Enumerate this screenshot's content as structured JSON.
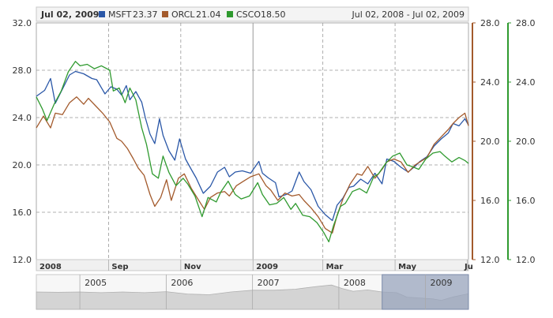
{
  "legend": {
    "date": "Jul 02, 2009:",
    "items": [
      {
        "name": "MSFT",
        "value": "23.37",
        "color": "#2a57a7"
      },
      {
        "name": "ORCL",
        "value": "21.04",
        "color": "#a35a2c"
      },
      {
        "name": "CSCO",
        "value": "18.50",
        "color": "#2f9a2f"
      }
    ],
    "range_text": "Jul 02, 2008 - Jul 02, 2009"
  },
  "navigator": {
    "years": [
      "2005",
      "2006",
      "2007",
      "2008",
      "2009"
    ]
  },
  "chart_data": {
    "type": "line",
    "title": "",
    "x_ticks": [
      "2008",
      "Sep",
      "Nov",
      "2009",
      "Mar",
      "May",
      "Ju"
    ],
    "y_left": {
      "ticks": [
        "32.0",
        "28.0",
        "24.0",
        "20.0",
        "16.0",
        "12.0"
      ],
      "range": [
        12,
        32
      ]
    },
    "y_right_orcl": {
      "ticks": [
        "28.0",
        "24.0",
        "20.0",
        "16.0",
        "12.0"
      ],
      "range": [
        12,
        28
      ],
      "color": "#a35a2c"
    },
    "y_right_csco": {
      "ticks": [
        "28.0",
        "24.0",
        "20.0",
        "16.0",
        "12.0"
      ],
      "range": [
        12,
        28
      ],
      "color": "#2f9a2f"
    },
    "x_range": [
      "2008-07-02",
      "2009-07-02"
    ],
    "series": [
      {
        "name": "MSFT",
        "color": "#2a57a7",
        "axis": "left",
        "points": [
          [
            "2008-07-02",
            25.8
          ],
          [
            "2008-07-09",
            26.3
          ],
          [
            "2008-07-14",
            27.3
          ],
          [
            "2008-07-18",
            25.2
          ],
          [
            "2008-07-24",
            26.4
          ],
          [
            "2008-07-30",
            27.6
          ],
          [
            "2008-08-04",
            27.9
          ],
          [
            "2008-08-11",
            27.7
          ],
          [
            "2008-08-18",
            27.3
          ],
          [
            "2008-08-22",
            27.2
          ],
          [
            "2008-08-29",
            26.0
          ],
          [
            "2008-09-03",
            26.6
          ],
          [
            "2008-09-08",
            26.4
          ],
          [
            "2008-09-12",
            25.9
          ],
          [
            "2008-09-16",
            26.7
          ],
          [
            "2008-09-19",
            25.5
          ],
          [
            "2008-09-24",
            26.2
          ],
          [
            "2008-09-29",
            25.3
          ],
          [
            "2008-10-02",
            24.0
          ],
          [
            "2008-10-06",
            22.6
          ],
          [
            "2008-10-10",
            21.8
          ],
          [
            "2008-10-14",
            23.9
          ],
          [
            "2008-10-17",
            22.5
          ],
          [
            "2008-10-22",
            21.2
          ],
          [
            "2008-10-27",
            20.4
          ],
          [
            "2008-10-31",
            22.2
          ],
          [
            "2008-11-05",
            20.5
          ],
          [
            "2008-11-10",
            19.6
          ],
          [
            "2008-11-14",
            18.9
          ],
          [
            "2008-11-20",
            17.6
          ],
          [
            "2008-11-26",
            18.2
          ],
          [
            "2008-12-02",
            19.4
          ],
          [
            "2008-12-08",
            19.8
          ],
          [
            "2008-12-12",
            19.0
          ],
          [
            "2008-12-17",
            19.4
          ],
          [
            "2008-12-23",
            19.5
          ],
          [
            "2008-12-30",
            19.3
          ],
          [
            "2009-01-06",
            20.3
          ],
          [
            "2009-01-09",
            19.3
          ],
          [
            "2009-01-14",
            18.9
          ],
          [
            "2009-01-20",
            18.5
          ],
          [
            "2009-01-23",
            17.3
          ],
          [
            "2009-01-29",
            17.5
          ],
          [
            "2009-02-03",
            17.8
          ],
          [
            "2009-02-09",
            19.4
          ],
          [
            "2009-02-13",
            18.6
          ],
          [
            "2009-02-19",
            17.9
          ],
          [
            "2009-02-25",
            16.5
          ],
          [
            "2009-03-03",
            15.8
          ],
          [
            "2009-03-09",
            15.3
          ],
          [
            "2009-03-13",
            16.6
          ],
          [
            "2009-03-18",
            17.2
          ],
          [
            "2009-03-23",
            18.1
          ],
          [
            "2009-03-27",
            18.2
          ],
          [
            "2009-04-02",
            18.8
          ],
          [
            "2009-04-08",
            18.4
          ],
          [
            "2009-04-14",
            19.3
          ],
          [
            "2009-04-20",
            18.4
          ],
          [
            "2009-04-24",
            20.5
          ],
          [
            "2009-04-30",
            20.3
          ],
          [
            "2009-05-06",
            19.8
          ],
          [
            "2009-05-12",
            19.4
          ],
          [
            "2009-05-18",
            19.9
          ],
          [
            "2009-05-22",
            20.3
          ],
          [
            "2009-05-28",
            20.7
          ],
          [
            "2009-06-03",
            21.6
          ],
          [
            "2009-06-09",
            22.2
          ],
          [
            "2009-06-15",
            22.7
          ],
          [
            "2009-06-19",
            23.5
          ],
          [
            "2009-06-24",
            23.3
          ],
          [
            "2009-06-29",
            23.9
          ],
          [
            "2009-07-02",
            23.37
          ]
        ]
      },
      {
        "name": "ORCL",
        "color": "#a35a2c",
        "axis": "right_orcl",
        "points": [
          [
            "2008-07-02",
            20.9
          ],
          [
            "2008-07-08",
            21.7
          ],
          [
            "2008-07-14",
            20.9
          ],
          [
            "2008-07-18",
            21.9
          ],
          [
            "2008-07-24",
            21.8
          ],
          [
            "2008-07-30",
            22.6
          ],
          [
            "2008-08-05",
            23.0
          ],
          [
            "2008-08-11",
            22.5
          ],
          [
            "2008-08-15",
            22.9
          ],
          [
            "2008-08-21",
            22.4
          ],
          [
            "2008-08-27",
            21.9
          ],
          [
            "2008-09-02",
            21.3
          ],
          [
            "2008-09-08",
            20.2
          ],
          [
            "2008-09-12",
            20.0
          ],
          [
            "2008-09-17",
            19.5
          ],
          [
            "2008-09-22",
            18.8
          ],
          [
            "2008-09-26",
            18.2
          ],
          [
            "2008-10-01",
            17.7
          ],
          [
            "2008-10-06",
            16.4
          ],
          [
            "2008-10-10",
            15.6
          ],
          [
            "2008-10-15",
            16.2
          ],
          [
            "2008-10-20",
            17.4
          ],
          [
            "2008-10-24",
            16.0
          ],
          [
            "2008-10-30",
            17.5
          ],
          [
            "2008-11-04",
            17.8
          ],
          [
            "2008-11-10",
            16.8
          ],
          [
            "2008-11-17",
            15.9
          ],
          [
            "2008-11-21",
            15.4
          ],
          [
            "2008-11-26",
            16.2
          ],
          [
            "2008-12-02",
            16.5
          ],
          [
            "2008-12-08",
            16.6
          ],
          [
            "2008-12-12",
            16.3
          ],
          [
            "2008-12-18",
            17.0
          ],
          [
            "2008-12-24",
            17.3
          ],
          [
            "2008-12-30",
            17.6
          ],
          [
            "2009-01-06",
            17.8
          ],
          [
            "2009-01-12",
            17.0
          ],
          [
            "2009-01-16",
            16.7
          ],
          [
            "2009-01-22",
            16.0
          ],
          [
            "2009-01-28",
            16.5
          ],
          [
            "2009-02-03",
            16.3
          ],
          [
            "2009-02-09",
            16.4
          ],
          [
            "2009-02-13",
            16.0
          ],
          [
            "2009-02-19",
            15.5
          ],
          [
            "2009-02-25",
            14.9
          ],
          [
            "2009-03-03",
            14.1
          ],
          [
            "2009-03-09",
            13.8
          ],
          [
            "2009-03-13",
            15.0
          ],
          [
            "2009-03-18",
            16.1
          ],
          [
            "2009-03-24",
            17.1
          ],
          [
            "2009-03-30",
            17.8
          ],
          [
            "2009-04-03",
            17.7
          ],
          [
            "2009-04-08",
            18.3
          ],
          [
            "2009-04-14",
            17.5
          ],
          [
            "2009-04-20",
            18.1
          ],
          [
            "2009-04-24",
            18.6
          ],
          [
            "2009-04-30",
            18.8
          ],
          [
            "2009-05-06",
            18.6
          ],
          [
            "2009-05-12",
            17.9
          ],
          [
            "2009-05-18",
            18.4
          ],
          [
            "2009-05-22",
            18.6
          ],
          [
            "2009-05-28",
            18.9
          ],
          [
            "2009-06-03",
            19.8
          ],
          [
            "2009-06-09",
            20.3
          ],
          [
            "2009-06-15",
            20.8
          ],
          [
            "2009-06-19",
            21.2
          ],
          [
            "2009-06-24",
            21.6
          ],
          [
            "2009-06-29",
            21.9
          ],
          [
            "2009-07-02",
            21.04
          ]
        ]
      },
      {
        "name": "CSCO",
        "color": "#2f9a2f",
        "axis": "right_csco",
        "points": [
          [
            "2008-07-02",
            23.0
          ],
          [
            "2008-07-07",
            22.2
          ],
          [
            "2008-07-11",
            21.4
          ],
          [
            "2008-07-17",
            22.5
          ],
          [
            "2008-07-23",
            23.4
          ],
          [
            "2008-07-29",
            24.7
          ],
          [
            "2008-08-04",
            25.4
          ],
          [
            "2008-08-08",
            25.1
          ],
          [
            "2008-08-14",
            25.2
          ],
          [
            "2008-08-20",
            24.9
          ],
          [
            "2008-08-26",
            25.1
          ],
          [
            "2008-09-02",
            24.8
          ],
          [
            "2008-09-05",
            23.4
          ],
          [
            "2008-09-10",
            23.6
          ],
          [
            "2008-09-15",
            22.6
          ],
          [
            "2008-09-19",
            23.6
          ],
          [
            "2008-09-24",
            22.8
          ],
          [
            "2008-09-29",
            20.9
          ],
          [
            "2008-10-03",
            19.8
          ],
          [
            "2008-10-08",
            17.8
          ],
          [
            "2008-10-13",
            17.5
          ],
          [
            "2008-10-17",
            19.0
          ],
          [
            "2008-10-22",
            17.9
          ],
          [
            "2008-10-28",
            17.0
          ],
          [
            "2008-11-03",
            17.5
          ],
          [
            "2008-11-07",
            17.1
          ],
          [
            "2008-11-13",
            16.3
          ],
          [
            "2008-11-19",
            14.9
          ],
          [
            "2008-11-24",
            16.2
          ],
          [
            "2008-12-01",
            15.9
          ],
          [
            "2008-12-05",
            16.6
          ],
          [
            "2008-12-11",
            17.3
          ],
          [
            "2008-12-17",
            16.4
          ],
          [
            "2008-12-22",
            16.1
          ],
          [
            "2008-12-29",
            16.3
          ],
          [
            "2009-01-05",
            17.2
          ],
          [
            "2009-01-09",
            16.4
          ],
          [
            "2009-01-15",
            15.7
          ],
          [
            "2009-01-21",
            15.8
          ],
          [
            "2009-01-27",
            16.2
          ],
          [
            "2009-02-02",
            15.4
          ],
          [
            "2009-02-06",
            15.8
          ],
          [
            "2009-02-12",
            15.0
          ],
          [
            "2009-02-18",
            14.9
          ],
          [
            "2009-02-24",
            14.5
          ],
          [
            "2009-03-02",
            13.8
          ],
          [
            "2009-03-06",
            13.2
          ],
          [
            "2009-03-10",
            14.3
          ],
          [
            "2009-03-16",
            15.6
          ],
          [
            "2009-03-20",
            15.8
          ],
          [
            "2009-03-26",
            16.6
          ],
          [
            "2009-04-01",
            16.8
          ],
          [
            "2009-04-07",
            16.5
          ],
          [
            "2009-04-13",
            17.6
          ],
          [
            "2009-04-17",
            17.8
          ],
          [
            "2009-04-23",
            18.5
          ],
          [
            "2009-04-29",
            19.0
          ],
          [
            "2009-05-05",
            19.2
          ],
          [
            "2009-05-11",
            18.4
          ],
          [
            "2009-05-15",
            18.3
          ],
          [
            "2009-05-21",
            18.1
          ],
          [
            "2009-05-27",
            18.8
          ],
          [
            "2009-06-02",
            19.2
          ],
          [
            "2009-06-08",
            19.3
          ],
          [
            "2009-06-12",
            19.0
          ],
          [
            "2009-06-18",
            18.6
          ],
          [
            "2009-06-24",
            18.9
          ],
          [
            "2009-06-29",
            18.7
          ],
          [
            "2009-07-02",
            18.5
          ]
        ]
      }
    ],
    "navigator_series": [
      [
        "2004-07-01",
        0.5
      ],
      [
        "2004-10-01",
        0.49
      ],
      [
        "2005-01-01",
        0.5
      ],
      [
        "2005-04-01",
        0.48
      ],
      [
        "2005-07-01",
        0.5
      ],
      [
        "2005-10-01",
        0.48
      ],
      [
        "2006-01-01",
        0.51
      ],
      [
        "2006-04-01",
        0.44
      ],
      [
        "2006-07-01",
        0.42
      ],
      [
        "2006-10-01",
        0.5
      ],
      [
        "2007-01-01",
        0.55
      ],
      [
        "2007-04-01",
        0.55
      ],
      [
        "2007-07-01",
        0.58
      ],
      [
        "2007-10-01",
        0.66
      ],
      [
        "2007-12-01",
        0.7
      ],
      [
        "2008-01-15",
        0.6
      ],
      [
        "2008-03-01",
        0.52
      ],
      [
        "2008-05-01",
        0.56
      ],
      [
        "2008-07-02",
        0.5
      ],
      [
        "2008-09-01",
        0.48
      ],
      [
        "2008-10-15",
        0.35
      ],
      [
        "2008-12-01",
        0.33
      ],
      [
        "2009-02-01",
        0.3
      ],
      [
        "2009-03-09",
        0.26
      ],
      [
        "2009-05-01",
        0.36
      ],
      [
        "2009-07-02",
        0.45
      ]
    ],
    "navigator_range": [
      "2004-07-01",
      "2009-07-02"
    ],
    "selection": [
      "2008-07-02",
      "2009-07-02"
    ]
  }
}
